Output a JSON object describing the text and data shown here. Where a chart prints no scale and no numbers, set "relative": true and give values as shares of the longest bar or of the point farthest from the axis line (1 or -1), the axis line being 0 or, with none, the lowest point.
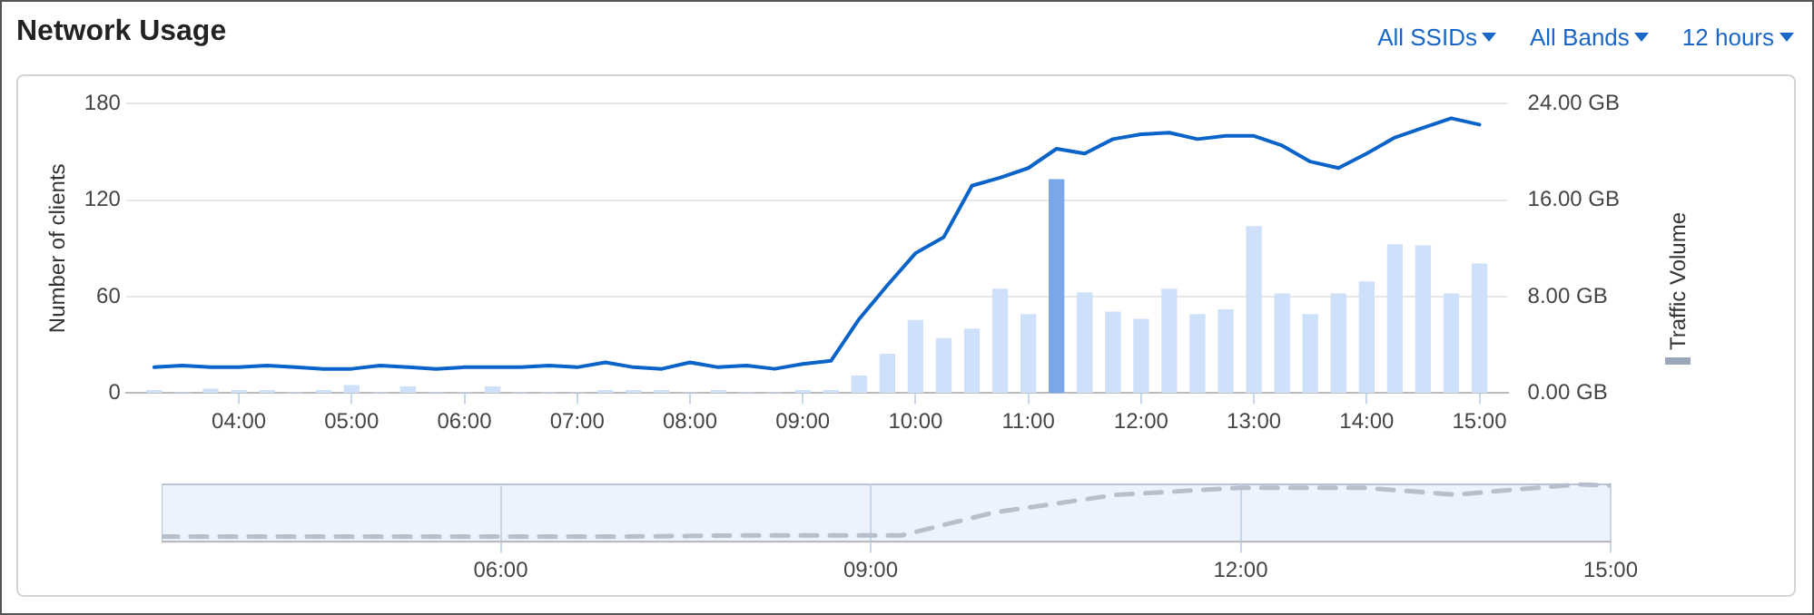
{
  "chart_data": [
    {
      "type": "bar",
      "title": "Network Usage",
      "ylabel": "Number of clients",
      "annotations": [
        "All SSIDs",
        "All Bands",
        "12 hours"
      ],
      "x": [
        3.25,
        3.5,
        3.75,
        4,
        4.25,
        4.5,
        4.75,
        5,
        5.25,
        5.5,
        5.75,
        6,
        6.25,
        6.5,
        6.75,
        7,
        7.25,
        7.5,
        7.75,
        8,
        8.25,
        8.5,
        8.75,
        9,
        9.25,
        9.5,
        9.75,
        10,
        10.25,
        10.5,
        10.75,
        11,
        11.25,
        11.5,
        11.75,
        12,
        12.25,
        12.5,
        12.75,
        13,
        13.25,
        13.5,
        13.75,
        14,
        14.25,
        14.5,
        14.75,
        15
      ],
      "xlim": [
        3,
        15.25
      ],
      "xticks": [
        {
          "value": 4,
          "label": "04:00"
        },
        {
          "value": 5,
          "label": "05:00"
        },
        {
          "value": 6,
          "label": "06:00"
        },
        {
          "value": 7,
          "label": "07:00"
        },
        {
          "value": 8,
          "label": "08:00"
        },
        {
          "value": 9,
          "label": "09:00"
        },
        {
          "value": 10,
          "label": "10:00"
        },
        {
          "value": 11,
          "label": "11:00"
        },
        {
          "value": 12,
          "label": "12:00"
        },
        {
          "value": 13,
          "label": "13:00"
        },
        {
          "value": 14,
          "label": "14:00"
        },
        {
          "value": 15,
          "label": "15:00"
        }
      ],
      "ylim": [
        0,
        180
      ],
      "yticks": [
        0,
        60,
        120,
        180
      ],
      "y2lim": [
        0,
        24
      ],
      "y2ticks": [
        {
          "value": 0,
          "label": "0.00 GB"
        },
        {
          "value": 8,
          "label": "8.00 GB"
        },
        {
          "value": 16,
          "label": "16.00 GB"
        },
        {
          "value": 24,
          "label": "24.00 GB"
        }
      ],
      "grid": "y",
      "legend": "right",
      "marker": "none",
      "series": [
        {
          "type": "line",
          "color": "#0a63c9",
          "line_style": "solid",
          "values": [
            16,
            17,
            16,
            16,
            17,
            16,
            15,
            15,
            17,
            16,
            15,
            16,
            16,
            16,
            17,
            16,
            19,
            16,
            15,
            19,
            16,
            17,
            15,
            18,
            20,
            46,
            67,
            87,
            97,
            129,
            134,
            140,
            152,
            149,
            158,
            161,
            162,
            158,
            160,
            160,
            154,
            144,
            140,
            149,
            159,
            165,
            171,
            167
          ]
        },
        {
          "name": "Traffic Volume",
          "type": "bar",
          "axis": "y2",
          "color": "#cfe0fa",
          "colors": [
            "#cfe0fa",
            "#cfe0fa",
            "#cfe0fa",
            "#cfe0fa",
            "#cfe0fa",
            "#cfe0fa",
            "#cfe0fa",
            "#cfe0fa",
            "#cfe0fa",
            "#cfe0fa",
            "#cfe0fa",
            "#cfe0fa",
            "#cfe0fa",
            "#cfe0fa",
            "#cfe0fa",
            "#cfe0fa",
            "#cfe0fa",
            "#cfe0fa",
            "#cfe0fa",
            "#cfe0fa",
            "#cfe0fa",
            "#cfe0fa",
            "#cfe0fa",
            "#cfe0fa",
            "#cfe0fa",
            "#cfe0fa",
            "#cfe0fa",
            "#cfe0fa",
            "#cfe0fa",
            "#cfe0fa",
            "#cfe0fa",
            "#cfe0fa",
            "#7aa7ea",
            "#cfe0fa",
            "#cfe0fa",
            "#cfe0fa",
            "#cfe0fa",
            "#cfe0fa",
            "#cfe0fa",
            "#cfe0fa",
            "#cfe0fa",
            "#cfe0fa",
            "#cfe0fa",
            "#cfe0fa",
            "#cfe0fa",
            "#cfe0fa",
            "#cfe0fa",
            "#cfe0fa"
          ],
          "values": [
            0.2,
            0,
            0.3,
            0.2,
            0.2,
            0,
            0.2,
            0.6,
            0,
            0.5,
            0,
            0,
            0.5,
            0,
            0,
            0,
            0.2,
            0.2,
            0.2,
            0,
            0.2,
            0,
            0,
            0.2,
            0.2,
            1.4,
            3.2,
            6.0,
            4.5,
            5.3,
            8.6,
            6.5,
            17.7,
            8.3,
            6.7,
            6.1,
            8.6,
            6.5,
            6.9,
            13.8,
            8.2,
            6.5,
            8.2,
            9.2,
            12.3,
            12.2,
            8.2,
            10.7
          ]
        }
      ]
    },
    {
      "type": "line",
      "relative": true,
      "marker": "none",
      "line_style": "dashed",
      "grid": "x",
      "x": [
        3.25,
        4,
        5,
        6,
        7,
        8,
        9,
        9.25,
        10,
        11,
        12,
        13,
        13.75,
        14,
        14.75,
        15
      ],
      "xlim": [
        3.25,
        15
      ],
      "xticks": [
        {
          "value": 6,
          "label": "06:00"
        },
        {
          "value": 9,
          "label": "09:00"
        },
        {
          "value": 12,
          "label": "12:00"
        },
        {
          "value": 15,
          "label": "15:00"
        }
      ],
      "series": [
        {
          "color": "#b8bfcc",
          "values": [
            0.09,
            0.09,
            0.09,
            0.09,
            0.09,
            0.11,
            0.11,
            0.11,
            0.51,
            0.82,
            0.94,
            0.94,
            0.82,
            0.87,
            1,
            0.98
          ]
        }
      ]
    }
  ]
}
